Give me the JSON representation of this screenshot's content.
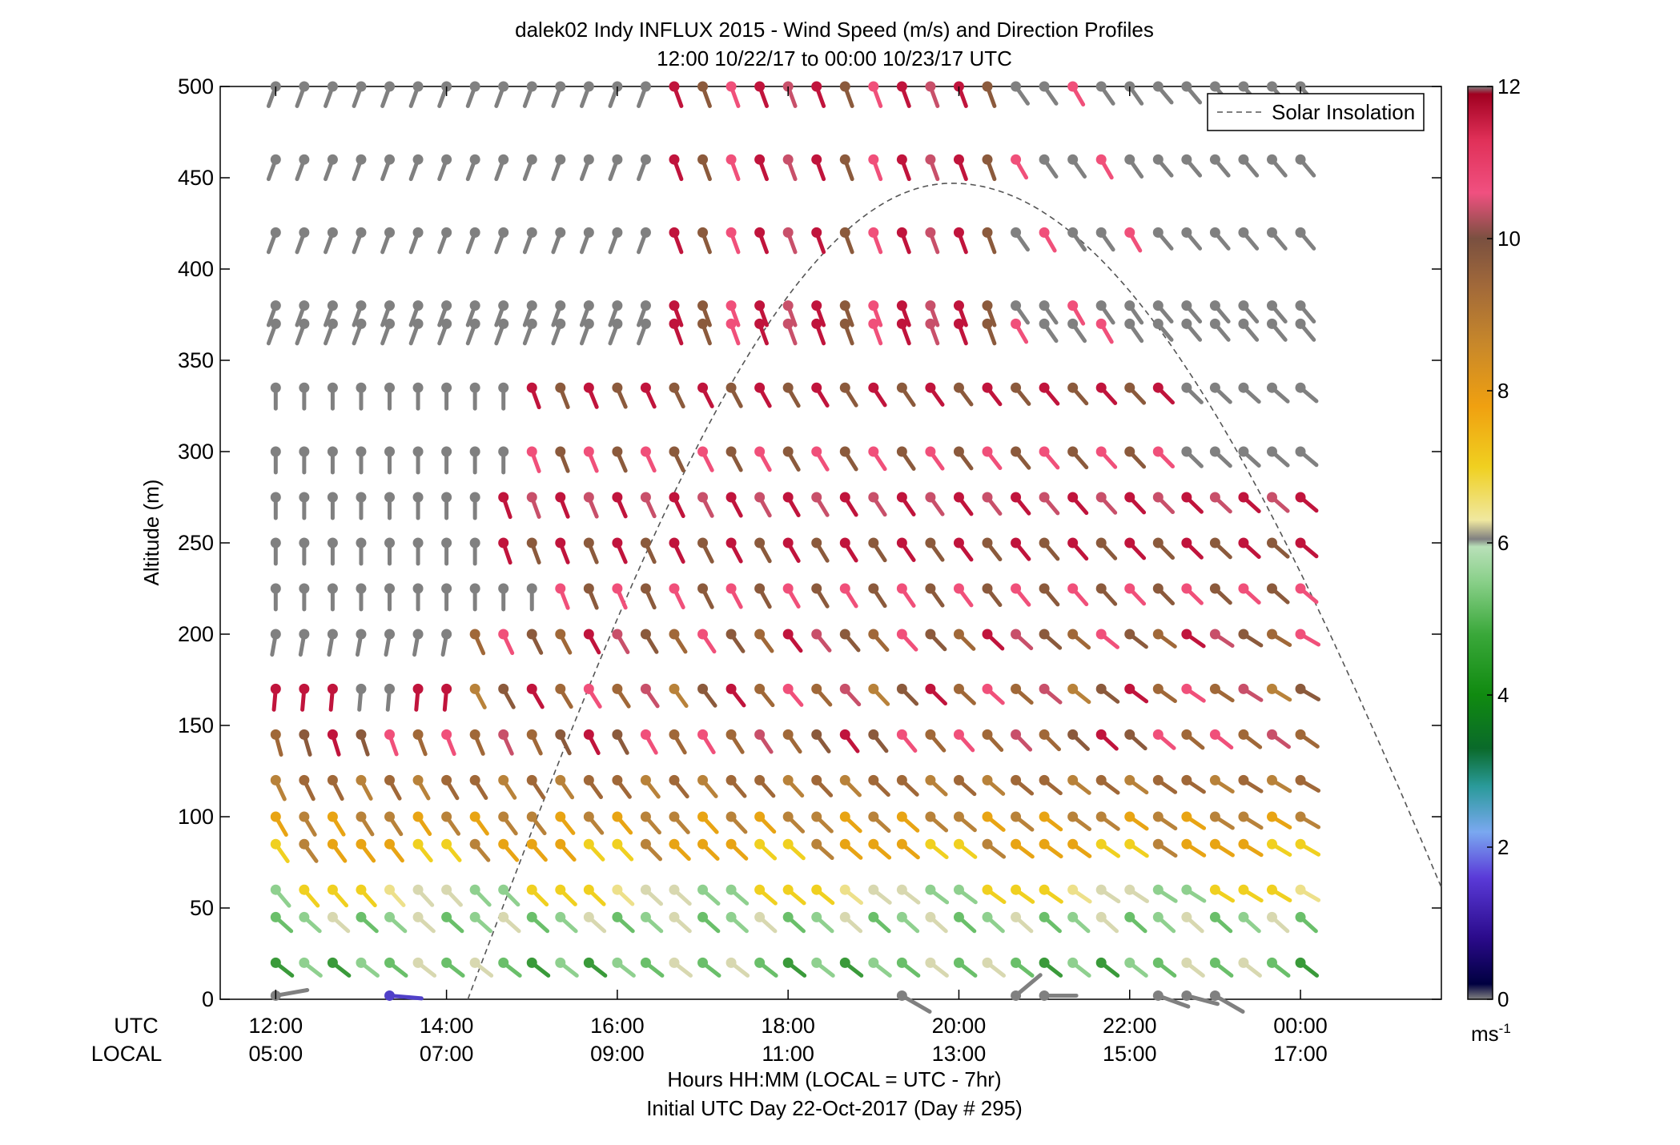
{
  "chart_data": {
    "type": "scatter",
    "title": "dalek02 Indy INFLUX 2015 - Wind Speed (m/s) and Direction Profiles",
    "subtitle": "12:00 10/22/17 to 00:00 10/23/17  UTC",
    "ylabel": "Altitude (m)",
    "xlabel": "Hours HH:MM  (LOCAL = UTC - 7hr)",
    "xlabel2": "Initial UTC Day 22-Oct-2017 (Day # 295)",
    "utc_row_label": "UTC",
    "local_row_label": "LOCAL",
    "x_ticks_utc": [
      "12:00",
      "14:00",
      "16:00",
      "18:00",
      "20:00",
      "22:00",
      "00:00"
    ],
    "x_ticks_local": [
      "05:00",
      "07:00",
      "09:00",
      "11:00",
      "13:00",
      "15:00",
      "17:00"
    ],
    "y_ticks": [
      "0",
      "50",
      "100",
      "150",
      "200",
      "250",
      "300",
      "350",
      "400",
      "450",
      "500"
    ],
    "ylim": [
      0,
      500
    ],
    "xlim_hours": [
      11.35,
      25.65
    ],
    "legend": {
      "entry": "Solar Insolation",
      "placement": "top-right"
    },
    "colorbar": {
      "label": "ms",
      "label_exponent": "-1",
      "ticks": [
        "0",
        "2",
        "4",
        "6",
        "8",
        "10",
        "12"
      ],
      "range": [
        0,
        12
      ]
    },
    "altitudes_m": [
      500,
      460,
      420,
      380,
      370,
      335,
      300,
      275,
      250,
      225,
      200,
      170,
      145,
      120,
      100,
      85,
      60,
      45,
      20,
      0
    ],
    "series_time_hours": "12:00 to 00:00 at 20-minute intervals (37 profiles)",
    "solar_insolation": {
      "description_curve_peak_utc": "19:55",
      "peak_altitude_equivalent": 447
    }
  },
  "colors": {
    "grey_light_wind": "#808080",
    "crimson": "#c0143c",
    "pink": "#f0507a",
    "brown": "#8b5a3c",
    "tan": "#b8823a",
    "orange": "#e8a414",
    "yellow": "#f0d020",
    "pale_yellow": "#ede08a",
    "light_green": "#8fd08f",
    "green": "#3a9a3a",
    "dark_green": "#187018",
    "teal": "#3a8aa8",
    "violet": "#5040c8"
  }
}
